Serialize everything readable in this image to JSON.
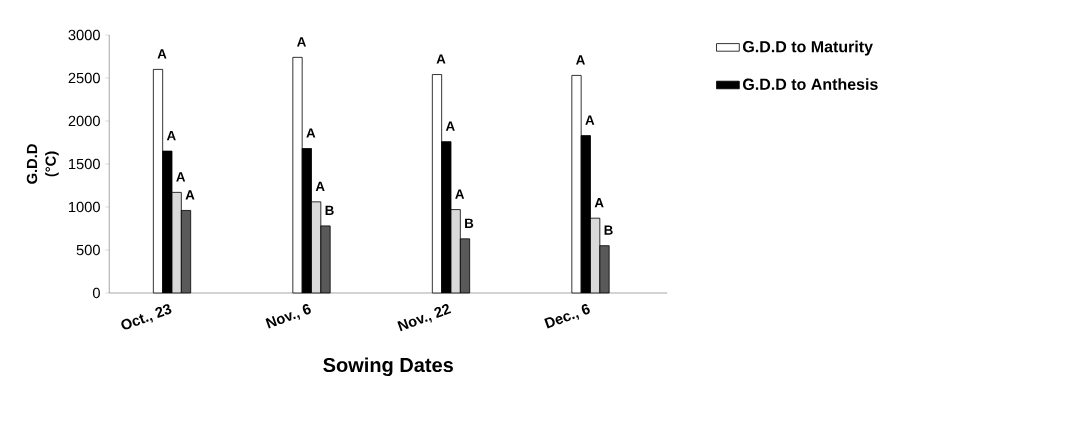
{
  "chart_data": {
    "type": "bar",
    "xlabel": "Sowing Dates",
    "ylabel": "G.D.D (°C)",
    "categories": [
      "Oct., 23",
      "Nov., 6",
      "Nov., 22",
      "Dec., 6"
    ],
    "series": [
      {
        "name": "G.D.D to Maturity",
        "color": "#ffffff",
        "values": [
          2600,
          2740,
          2540,
          2530
        ],
        "value_labels": [
          "A",
          "A",
          "A",
          "A"
        ]
      },
      {
        "name": "G.D.D  to Anthesis",
        "color": "#000000",
        "values": [
          1650,
          1680,
          1760,
          1830
        ],
        "value_labels": [
          "A",
          "A",
          "A",
          "A"
        ]
      },
      {
        "color": "#d9d9d9",
        "values": [
          1170,
          1060,
          970,
          870
        ],
        "value_labels": [
          "A",
          "A",
          "A",
          "A"
        ]
      },
      {
        "color": "#595959",
        "values": [
          960,
          780,
          630,
          550
        ],
        "value_labels": [
          "A",
          "B",
          "B",
          "B"
        ]
      }
    ],
    "ylim": [
      0,
      3000
    ],
    "yticks": [
      0,
      500,
      1000,
      1500,
      2000,
      2500,
      3000
    ],
    "legend": "top right",
    "grid": false
  }
}
